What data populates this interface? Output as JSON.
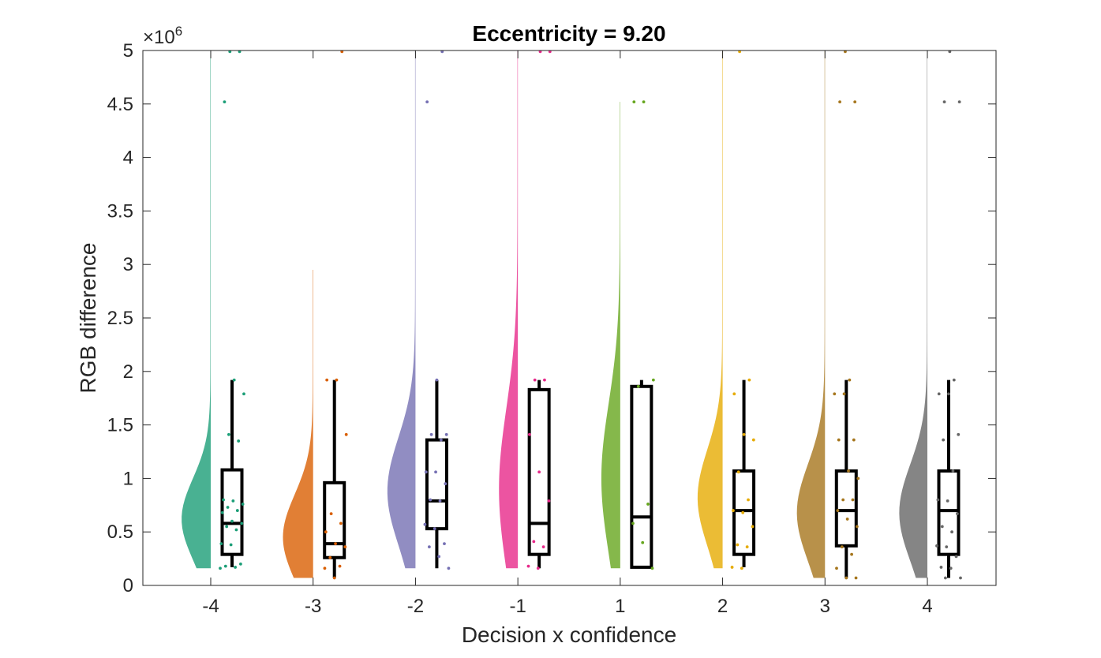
{
  "chart_data": {
    "type": "raincloud",
    "title": "Eccentricity = 9.20",
    "xlabel": "Decision x confidence",
    "ylabel": "RGB difference",
    "y_exponent_label": "×10",
    "y_exponent_power": "6",
    "ylim": [
      0,
      5
    ],
    "y_ticks": [
      0,
      0.5,
      1,
      1.5,
      2,
      2.5,
      3,
      3.5,
      4,
      4.5,
      5
    ],
    "y_tick_labels": [
      "0",
      "0.5",
      "1",
      "1.5",
      "2",
      "2.5",
      "3",
      "3.5",
      "4",
      "4.5",
      "5"
    ],
    "grid": false,
    "categories": [
      "-4",
      "-3",
      "-2",
      "-1",
      "1",
      "2",
      "3",
      "4"
    ],
    "groups": [
      {
        "label": "-4",
        "color": "#1b9e77",
        "box": {
          "min": 0.17,
          "q1": 0.29,
          "median": 0.58,
          "q3": 1.08,
          "max": 1.92
        },
        "violin": {
          "min": 0.16,
          "max": 5.0,
          "peak": 0.62,
          "width": 0.28,
          "spread": 0.38
        },
        "points": [
          0.16,
          0.17,
          0.18,
          0.2,
          0.38,
          0.39,
          0.52,
          0.55,
          0.58,
          0.6,
          0.68,
          0.7,
          0.73,
          0.76,
          0.79,
          0.8,
          1.35,
          1.41,
          1.79,
          1.92,
          4.52,
          4.99,
          4.99
        ]
      },
      {
        "label": "-3",
        "color": "#d95f02",
        "box": {
          "min": 0.07,
          "q1": 0.26,
          "median": 0.39,
          "q3": 0.96,
          "max": 1.92
        },
        "violin": {
          "min": 0.07,
          "max": 2.95,
          "peak": 0.45,
          "width": 0.29,
          "spread": 0.4
        },
        "points": [
          0.07,
          0.16,
          0.18,
          0.26,
          0.36,
          0.39,
          0.5,
          0.58,
          0.67,
          1.41,
          1.92,
          1.92,
          4.99
        ]
      },
      {
        "label": "-2",
        "color": "#7570b3",
        "box": {
          "min": 0.16,
          "q1": 0.53,
          "median": 0.79,
          "q3": 1.36,
          "max": 1.92
        },
        "violin": {
          "min": 0.16,
          "max": 5.0,
          "peak": 0.88,
          "width": 0.27,
          "spread": 0.5
        },
        "points": [
          0.16,
          0.27,
          0.36,
          0.39,
          0.53,
          0.57,
          0.79,
          0.8,
          0.95,
          1.06,
          1.06,
          1.36,
          1.41,
          1.41,
          1.92,
          4.52,
          4.99
        ]
      },
      {
        "label": "-1",
        "color": "#e7298a",
        "box": {
          "min": 0.16,
          "q1": 0.29,
          "median": 0.58,
          "q3": 1.83,
          "max": 1.92
        },
        "violin": {
          "min": 0.16,
          "max": 5.0,
          "peak": 0.9,
          "width": 0.18,
          "spread": 0.75
        },
        "points": [
          0.16,
          0.18,
          0.36,
          0.41,
          0.79,
          1.06,
          1.41,
          1.92,
          1.92,
          4.99,
          4.99
        ]
      },
      {
        "label": "1",
        "color": "#66a61e",
        "box": {
          "min": 0.17,
          "q1": 0.17,
          "median": 0.64,
          "q3": 1.86,
          "max": 1.92
        },
        "violin": {
          "min": 0.16,
          "max": 4.52,
          "peak": 1.0,
          "width": 0.18,
          "spread": 0.7
        },
        "points": [
          0.16,
          0.4,
          0.58,
          0.76,
          1.86,
          1.92,
          4.52,
          4.52
        ]
      },
      {
        "label": "2",
        "color": "#e6ab02",
        "box": {
          "min": 0.17,
          "q1": 0.29,
          "median": 0.7,
          "q3": 1.07,
          "max": 1.92
        },
        "violin": {
          "min": 0.16,
          "max": 5.0,
          "peak": 0.82,
          "width": 0.24,
          "spread": 0.45
        },
        "points": [
          0.16,
          0.17,
          0.36,
          0.38,
          0.55,
          0.68,
          0.7,
          0.8,
          1.06,
          1.36,
          1.41,
          1.79,
          1.92,
          4.99
        ]
      },
      {
        "label": "3",
        "color": "#a6761d",
        "box": {
          "min": 0.07,
          "q1": 0.37,
          "median": 0.7,
          "q3": 1.07,
          "max": 1.92
        },
        "violin": {
          "min": 0.07,
          "max": 5.0,
          "peak": 0.68,
          "width": 0.27,
          "spread": 0.45
        },
        "points": [
          0.07,
          0.07,
          0.16,
          0.29,
          0.36,
          0.55,
          0.62,
          0.7,
          0.8,
          0.8,
          1.0,
          1.07,
          1.36,
          1.36,
          1.79,
          1.79,
          1.92,
          4.52,
          4.52,
          4.99
        ]
      },
      {
        "label": "4",
        "color": "#666666",
        "box": {
          "min": 0.07,
          "q1": 0.29,
          "median": 0.7,
          "q3": 1.07,
          "max": 1.92
        },
        "violin": {
          "min": 0.07,
          "max": 5.0,
          "peak": 0.68,
          "width": 0.27,
          "spread": 0.45
        },
        "points": [
          0.07,
          0.07,
          0.16,
          0.17,
          0.27,
          0.36,
          0.37,
          0.5,
          0.55,
          0.67,
          0.79,
          0.8,
          1.07,
          1.36,
          1.41,
          1.79,
          1.79,
          1.92,
          4.52,
          4.52,
          4.99
        ]
      }
    ]
  }
}
